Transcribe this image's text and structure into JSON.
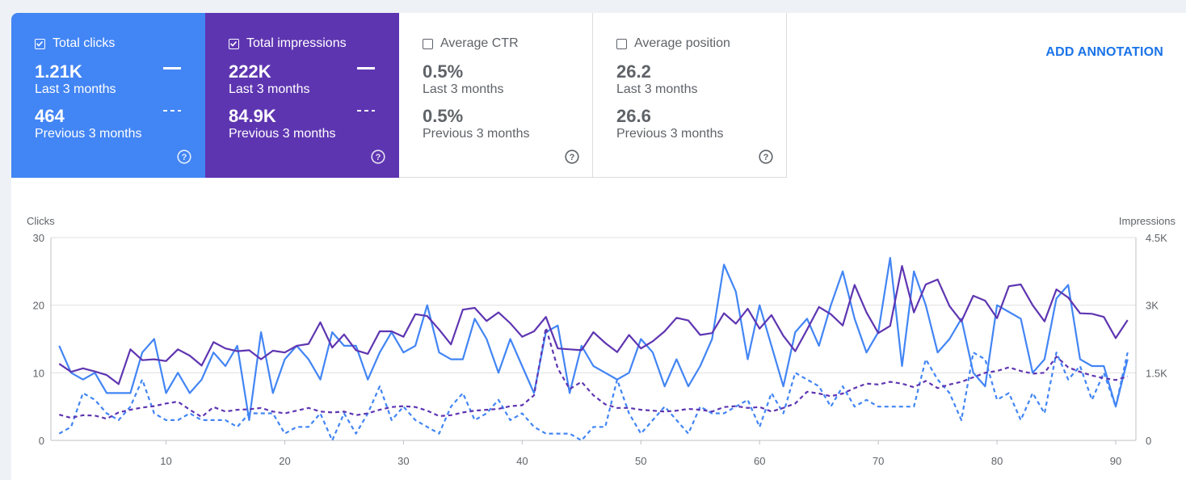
{
  "cards": [
    {
      "title": "Total clicks",
      "checked": true,
      "current": "1.21K",
      "current_label": "Last 3 months",
      "previous": "464",
      "previous_label": "Previous 3 months",
      "help": "?"
    },
    {
      "title": "Total impressions",
      "checked": true,
      "current": "222K",
      "current_label": "Last 3 months",
      "previous": "84.9K",
      "previous_label": "Previous 3 months",
      "help": "?"
    },
    {
      "title": "Average CTR",
      "checked": false,
      "current": "0.5%",
      "current_label": "Last 3 months",
      "previous": "0.5%",
      "previous_label": "Previous 3 months",
      "help": "?"
    },
    {
      "title": "Average position",
      "checked": false,
      "current": "26.2",
      "current_label": "Last 3 months",
      "previous": "26.6",
      "previous_label": "Previous 3 months",
      "help": "?"
    }
  ],
  "add_annotation": "ADD ANNOTATION",
  "colors": {
    "clicks": "#4285f4",
    "impressions": "#5e35b1",
    "grid": "#e0e0e0",
    "axis_text": "#5f6368"
  },
  "chart_data": {
    "type": "line",
    "left_axis": {
      "label": "Clicks",
      "ticks": [
        "0",
        "10",
        "20",
        "30"
      ],
      "min": 0,
      "max": 30
    },
    "right_axis": {
      "label": "Impressions",
      "ticks": [
        "0",
        "1.5K",
        "3K",
        "4.5K"
      ],
      "min": 0,
      "max": 4500
    },
    "x_ticks": [
      "10",
      "20",
      "30",
      "40",
      "50",
      "60",
      "70",
      "80",
      "90"
    ],
    "x_range": [
      1,
      91
    ],
    "series": [
      {
        "name": "Total clicks",
        "period": "Last 3 months",
        "axis": "left",
        "style": "solid",
        "color": "#4285f4",
        "values": [
          14,
          10,
          9,
          10,
          7,
          7,
          7,
          13,
          15,
          7,
          10,
          7,
          9,
          13,
          11,
          14,
          3,
          16,
          7,
          12,
          14,
          12,
          9,
          16,
          14,
          14,
          9,
          13,
          16,
          13,
          14,
          20,
          13,
          12,
          12,
          18,
          15,
          10,
          15,
          11,
          7,
          16,
          17,
          7,
          14,
          11,
          10,
          9,
          10,
          15,
          13,
          8,
          12,
          8,
          11,
          15,
          26,
          22,
          12,
          20,
          14,
          8,
          16,
          18,
          14,
          20,
          25,
          18,
          13,
          16,
          27,
          11,
          25,
          20,
          13,
          15,
          18,
          10,
          8,
          20,
          19,
          18,
          10,
          12,
          21,
          23,
          12,
          11,
          11,
          5,
          12
        ]
      },
      {
        "name": "Total clicks",
        "period": "Previous 3 months",
        "axis": "left",
        "style": "dashed",
        "color": "#4285f4",
        "values": [
          1,
          2,
          7,
          6,
          4,
          3,
          5,
          9,
          4,
          3,
          3,
          4,
          3,
          3,
          3,
          2,
          4,
          4,
          4,
          1,
          2,
          2,
          4,
          0,
          4,
          1,
          4,
          8,
          3,
          5,
          3,
          2,
          1,
          5,
          7,
          3,
          4,
          6,
          3,
          4,
          2,
          1,
          1,
          1,
          0,
          2,
          2,
          9,
          4,
          1,
          3,
          5,
          3,
          1,
          5,
          4,
          4,
          5,
          6,
          2,
          7,
          4,
          10,
          9,
          8,
          5,
          8,
          5,
          6,
          5,
          5,
          5,
          5,
          12,
          9,
          7,
          3,
          13,
          12,
          6,
          7,
          3,
          7,
          4,
          13,
          9,
          11,
          6,
          10,
          5,
          13
        ]
      },
      {
        "name": "Total impressions",
        "period": "Last 3 months",
        "axis": "right",
        "style": "solid",
        "color": "#5e35b1",
        "values": [
          1700,
          1520,
          1600,
          1530,
          1450,
          1250,
          2020,
          1780,
          1800,
          1760,
          2020,
          1880,
          1660,
          2180,
          2040,
          1980,
          2000,
          1800,
          1990,
          1950,
          2100,
          2140,
          2620,
          2060,
          2350,
          2000,
          1920,
          2420,
          2420,
          2300,
          2800,
          2760,
          2460,
          2130,
          2900,
          2940,
          2650,
          2840,
          2600,
          2300,
          2420,
          2740,
          2040,
          2020,
          2000,
          2400,
          2160,
          1960,
          2340,
          2040,
          2200,
          2420,
          2720,
          2660,
          2340,
          2380,
          2820,
          2590,
          2920,
          2480,
          2780,
          2320,
          1980,
          2460,
          2960,
          2800,
          2550,
          3450,
          2840,
          2380,
          2540,
          3870,
          2840,
          3460,
          3570,
          2980,
          2640,
          3210,
          3100,
          2710,
          3420,
          3460,
          3000,
          2640,
          3350,
          3170,
          2820,
          2810,
          2740,
          2270,
          2670
        ]
      },
      {
        "name": "Total impressions",
        "period": "Previous 3 months",
        "axis": "right",
        "style": "dashed",
        "color": "#5e35b1",
        "values": [
          570,
          500,
          560,
          550,
          480,
          620,
          680,
          730,
          760,
          820,
          860,
          680,
          520,
          740,
          640,
          680,
          690,
          720,
          640,
          600,
          660,
          720,
          640,
          620,
          640,
          560,
          600,
          680,
          740,
          760,
          740,
          660,
          540,
          560,
          620,
          660,
          680,
          700,
          760,
          780,
          1000,
          2500,
          1600,
          1140,
          1300,
          1000,
          800,
          720,
          720,
          680,
          660,
          640,
          660,
          700,
          680,
          640,
          740,
          760,
          720,
          740,
          640,
          720,
          820,
          1080,
          1040,
          980,
          1040,
          1160,
          1260,
          1240,
          1300,
          1260,
          1180,
          1320,
          1160,
          1240,
          1300,
          1400,
          1500,
          1540,
          1620,
          1540,
          1480,
          1500,
          1860,
          1620,
          1520,
          1440,
          1380,
          1340,
          1420
        ]
      }
    ]
  }
}
